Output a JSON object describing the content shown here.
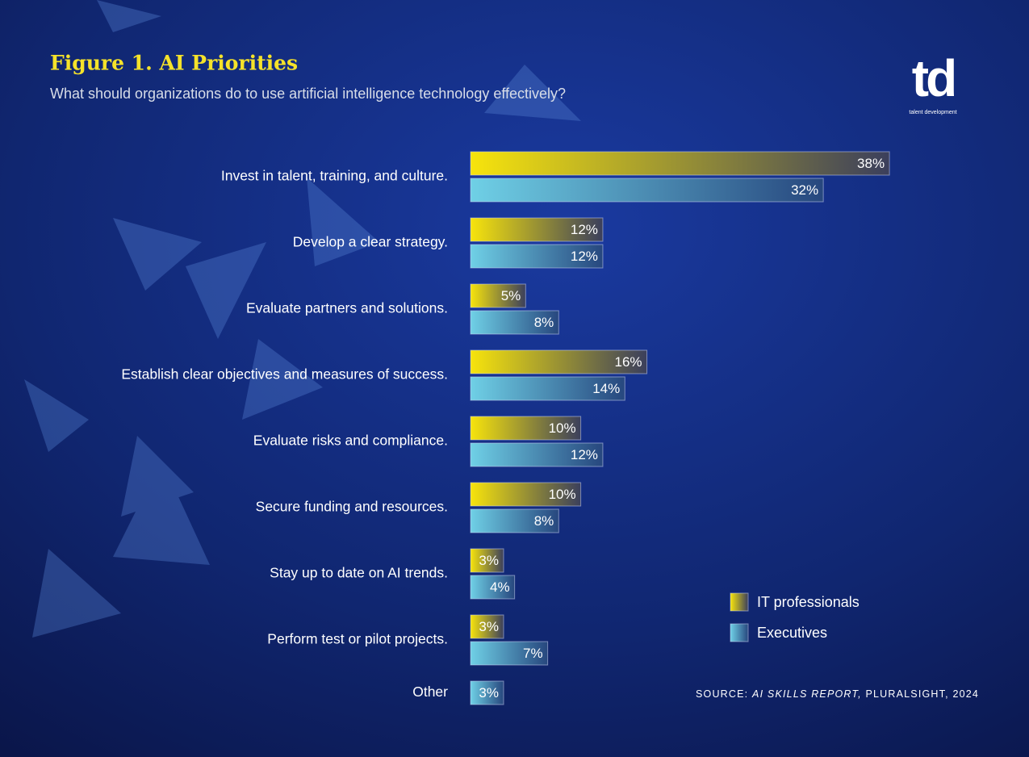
{
  "chart_data": {
    "type": "bar",
    "title": "Figure 1. AI Priorities",
    "subtitle": "What should organizations do to use artificial intelligence technology effectively?",
    "categories": [
      "Invest in talent, training, and culture.",
      "Develop a clear strategy.",
      "Evaluate partners and solutions.",
      "Establish clear objectives and measures of success.",
      "Evaluate risks and compliance.",
      "Secure funding and resources.",
      "Stay up to date on AI trends.",
      "Perform test or pilot projects.",
      "Other"
    ],
    "series": [
      {
        "name": "IT professionals",
        "color": "#f7e40c",
        "values": [
          38,
          12,
          5,
          16,
          10,
          10,
          3,
          3,
          null
        ],
        "value_labels": [
          "38%",
          "12%",
          "5%",
          "16%",
          "10%",
          "10%",
          "3%",
          "3%",
          null
        ]
      },
      {
        "name": "Executives",
        "color": "#6fd0e6",
        "values": [
          32,
          12,
          8,
          14,
          12,
          8,
          4,
          7,
          3
        ],
        "value_labels": [
          "32%",
          "12%",
          "8%",
          "14%",
          "12%",
          "8%",
          "4%",
          "7%",
          "3%"
        ]
      }
    ],
    "legend": "lower right",
    "source": [
      "SOURCE:",
      "AI SKILLS REPORT,",
      "PLURALSIGHT, 2024"
    ],
    "logo": {
      "mark": "td",
      "caption": "talent development"
    }
  }
}
